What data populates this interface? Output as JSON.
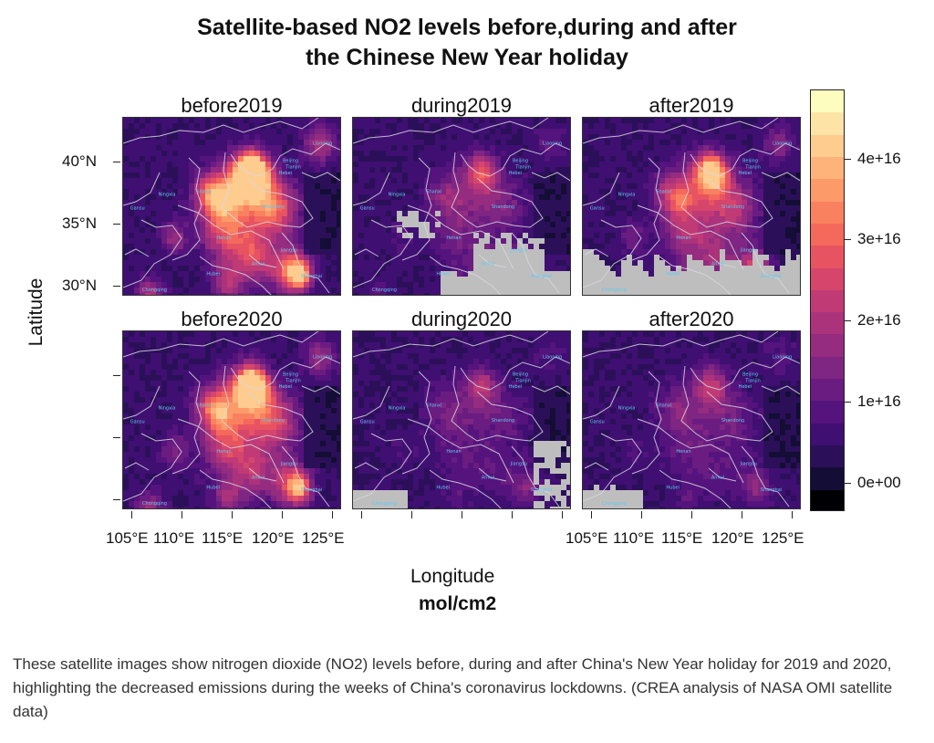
{
  "title_line1": "Satellite-based NO2 levels before,during and after",
  "title_line2": "the Chinese New Year holiday",
  "panels": [
    {
      "label": "before2019",
      "intensity": 1.0,
      "missing": "none"
    },
    {
      "label": "during2019",
      "intensity": 0.32,
      "missing": "se-large"
    },
    {
      "label": "after2019",
      "intensity": 0.62,
      "missing": "south-band"
    },
    {
      "label": "before2020",
      "intensity": 0.82,
      "missing": "none"
    },
    {
      "label": "during2020",
      "intensity": 0.22,
      "missing": "se-small"
    },
    {
      "label": "after2020",
      "intensity": 0.26,
      "missing": "sw-small"
    }
  ],
  "province_labels": [
    "Liaoning",
    "Beijing",
    "Tianjin",
    "Hebei",
    "Shanxi",
    "Shandong",
    "Ningxia",
    "Gansu",
    "Henan",
    "Jiangsu",
    "Anhui",
    "Hubei",
    "Shanghai",
    "Chongqing",
    "Zhejiang"
  ],
  "y_ticks": [
    "40°N",
    "35°N",
    "30°N"
  ],
  "x_ticks": [
    "105°E",
    "110°E",
    "115°E",
    "120°E",
    "125°E"
  ],
  "y_axis_title": "Latitude",
  "x_axis_title": "Longitude",
  "unit": "mol/cm2",
  "colorbar": {
    "labels": [
      "4e+16",
      "3e+16",
      "2e+16",
      "1e+16",
      "0e+00"
    ],
    "values": [
      4e+16,
      3e+16,
      2e+16,
      1e+16,
      0
    ],
    "max": 4.85e+16,
    "min": -3500000000000000.0,
    "colors": [
      "#000004",
      "#140d35",
      "#2b1059",
      "#3f0f72",
      "#55137d",
      "#6a1c81",
      "#7f2582",
      "#952c80",
      "#ab337c",
      "#c03a76",
      "#d6456c",
      "#e85362",
      "#f4695c",
      "#fa815f",
      "#fd9a6a",
      "#feb37b",
      "#fecc8f",
      "#fde4a6",
      "#fcfdbf"
    ],
    "missing_color": "#bebebe"
  },
  "caption": "These satellite images show nitrogen dioxide (NO2) levels before, during and after China's New Year holiday for 2019 and 2020, highlighting the decreased emissions during the weeks of China's coronavirus lockdowns. (CREA analysis of NASA OMI satellite data)"
}
